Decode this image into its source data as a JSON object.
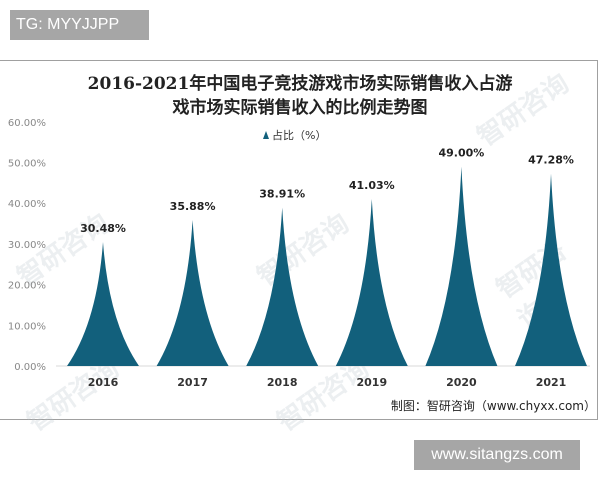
{
  "header": {
    "tg_label": "TG: MYYJJPP"
  },
  "chart": {
    "title_line1": "2016-2021年中国电子竞技游戏市场实际销售收入占游",
    "title_line2": "戏市场实际销售收入的比例走势图",
    "legend_label": "占比（%）",
    "source": "制图：智研咨询（www.chyxx.com）",
    "bar_color": "#12607c",
    "watermark": "智研咨询"
  },
  "footer": {
    "site_label": "www.sitangzs.com"
  },
  "chart_data": {
    "type": "bar",
    "title": "2016-2021年中国电子竞技游戏市场实际销售收入占游戏市场实际销售收入的比例走势图",
    "xlabel": "",
    "ylabel": "",
    "categories": [
      "2016",
      "2017",
      "2018",
      "2019",
      "2020",
      "2021"
    ],
    "series": [
      {
        "name": "占比（%）",
        "values": [
          30.48,
          35.88,
          38.91,
          41.03,
          49.0,
          47.28
        ]
      }
    ],
    "value_labels": [
      "30.48%",
      "35.88%",
      "38.91%",
      "41.03%",
      "49.00%",
      "47.28%"
    ],
    "yticks": [
      "0.00%",
      "10.00%",
      "20.00%",
      "30.00%",
      "40.00%",
      "50.00%",
      "60.00%"
    ],
    "ylim": [
      0,
      60
    ],
    "grid": false,
    "legend_position": "top",
    "bar_shape": "cone/spike"
  }
}
